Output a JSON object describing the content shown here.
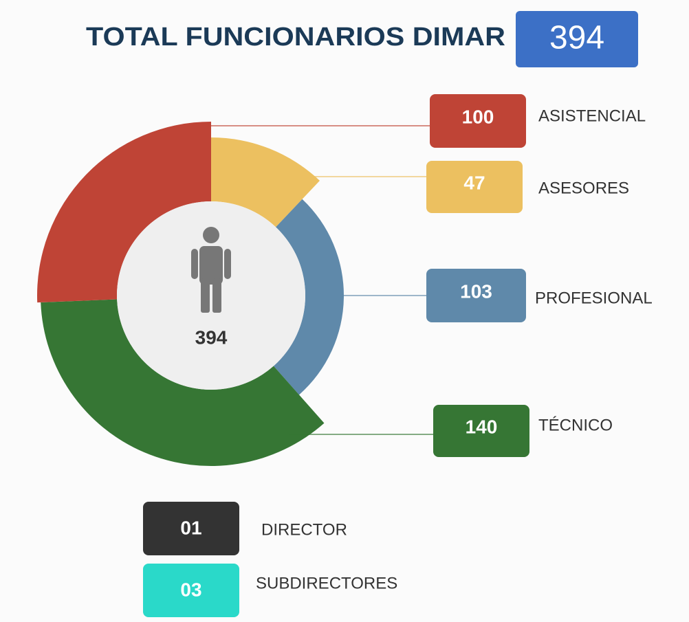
{
  "chart_data": {
    "type": "pie",
    "title": "TOTAL FUNCIONARIOS DIMAR",
    "total": 394,
    "categories": [
      "ASISTENCIAL",
      "ASESORES",
      "PROFESIONAL",
      "TÉCNICO"
    ],
    "values": [
      100,
      47,
      103,
      140
    ],
    "colors": [
      "#bf4436",
      "#ecc060",
      "#5f89aa",
      "#367634"
    ],
    "staff": {
      "categories": [
        "DIRECTOR",
        "SUBDIRECTORES"
      ],
      "values": [
        1,
        3
      ],
      "value_labels": [
        "01",
        "03"
      ],
      "colors": [
        "#333333",
        "#2ad9c9"
      ]
    }
  }
}
